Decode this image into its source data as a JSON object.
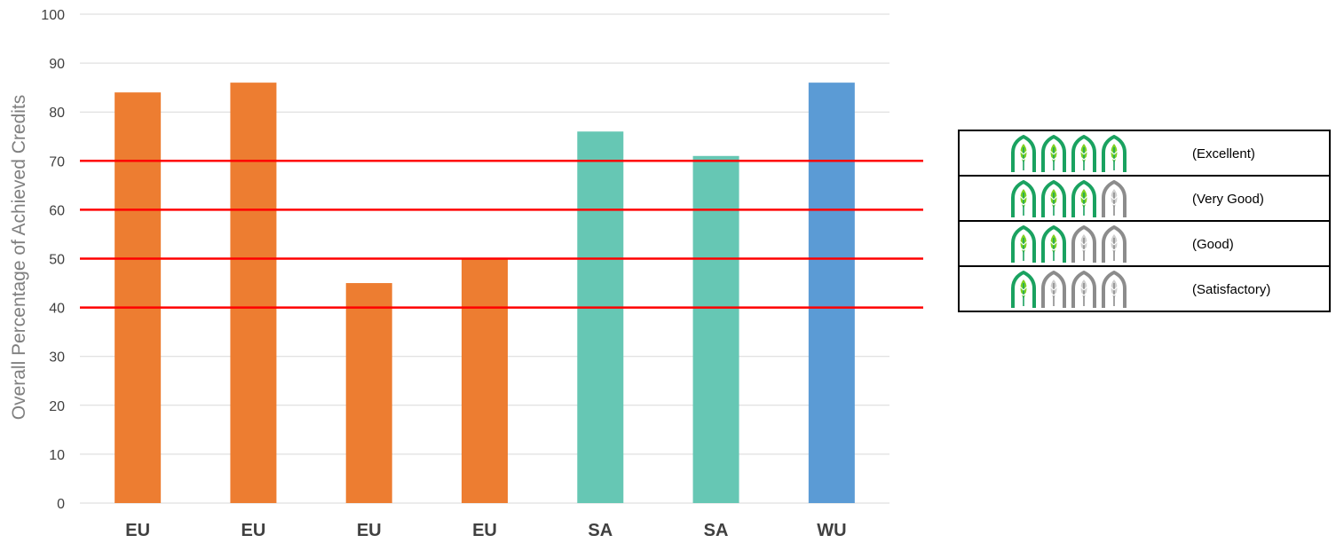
{
  "chart_data": {
    "type": "bar",
    "categories": [
      "EU",
      "EU",
      "EU",
      "EU",
      "SA",
      "SA",
      "WU"
    ],
    "values": [
      84,
      86,
      45,
      50,
      76,
      71,
      86
    ],
    "bar_colors": [
      "#ed7d31",
      "#ed7d31",
      "#ed7d31",
      "#ed7d31",
      "#66c7b4",
      "#66c7b4",
      "#5b9bd5"
    ],
    "title": "",
    "xlabel": "",
    "ylabel": "Overall Percentage of Achieved Credits",
    "ylim": [
      0,
      100
    ],
    "yticks": [
      0,
      10,
      20,
      30,
      40,
      50,
      60,
      70,
      80,
      90,
      100
    ],
    "grid": true,
    "threshold_lines": [
      70,
      60,
      50,
      40
    ],
    "threshold_color": "#ff0000",
    "legend_placement": "right"
  },
  "rating_legend": {
    "rows": [
      {
        "label": "(Excellent)",
        "filled": 4,
        "total": 4
      },
      {
        "label": "(Very Good)",
        "filled": 3,
        "total": 4
      },
      {
        "label": "(Good)",
        "filled": 2,
        "total": 4
      },
      {
        "label": "(Satisfactory)",
        "filled": 1,
        "total": 4
      }
    ],
    "filled_color": "#1aa260",
    "filled_leaf_color": "#7ed321",
    "empty_color": "#8c8c8c",
    "empty_leaf_color": "#cfcfcf",
    "icon": "leaf-arch-icon"
  }
}
